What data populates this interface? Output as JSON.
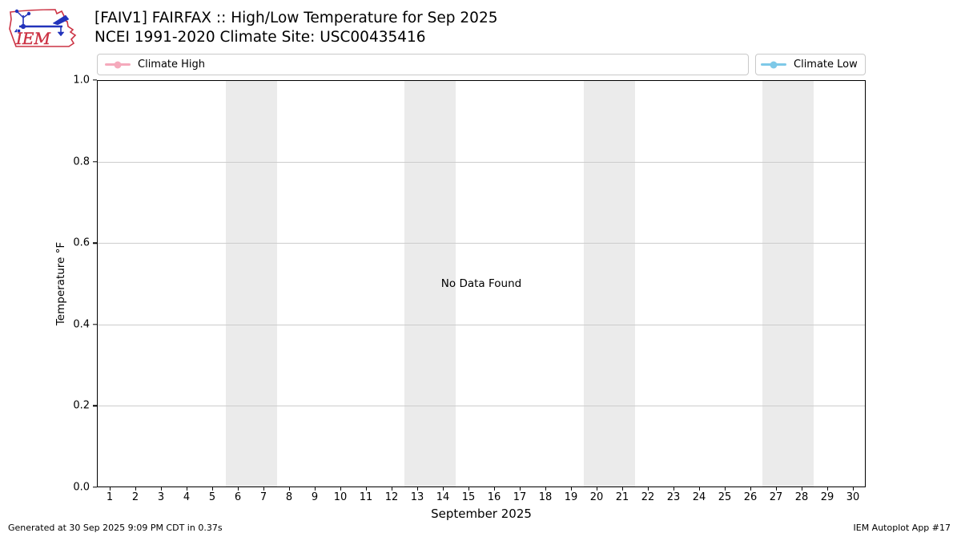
{
  "header": {
    "title_line1": "[FAIV1] FAIRFAX :: High/Low Temperature for Sep 2025",
    "title_line2": "NCEI 1991-2020 Climate Site: USC00435416"
  },
  "logo": {
    "text": "IEM",
    "outline_color": "#cc3344",
    "vane_color": "#2233bb"
  },
  "legend": [
    {
      "label": "Climate High",
      "color": "#f5aabc"
    },
    {
      "label": "Climate Low",
      "color": "#7ec9e8"
    }
  ],
  "chart_data": {
    "type": "line",
    "title": "[FAIV1] FAIRFAX :: High/Low Temperature for Sep 2025",
    "subtitle": "NCEI 1991-2020 Climate Site: USC00435416",
    "xlabel": "September 2025",
    "ylabel": "Temperature °F",
    "ylim": [
      0.0,
      1.0
    ],
    "x_ticks": [
      1,
      2,
      3,
      4,
      5,
      6,
      7,
      8,
      9,
      10,
      11,
      12,
      13,
      14,
      15,
      16,
      17,
      18,
      19,
      20,
      21,
      22,
      23,
      24,
      25,
      26,
      27,
      28,
      29,
      30
    ],
    "y_ticks": [
      "1.0",
      "0.8",
      "0.6",
      "0.4",
      "0.2",
      "0.0"
    ],
    "series": [
      {
        "name": "Climate High",
        "color": "#f5aabc",
        "values": []
      },
      {
        "name": "Climate Low",
        "color": "#7ec9e8",
        "values": []
      }
    ],
    "annotation": "No Data Found",
    "weekend_bands_days": [
      [
        6,
        7
      ],
      [
        13,
        14
      ],
      [
        20,
        21
      ],
      [
        27,
        28
      ]
    ],
    "band_color": "#ebebeb",
    "grid": "horizontal",
    "grid_color": "#cccccc",
    "legend_position": "top, two boxes: left and right"
  },
  "footer": {
    "left": "Generated at 30 Sep 2025 9:09 PM CDT in 0.37s",
    "right": "IEM Autoplot App #17"
  }
}
